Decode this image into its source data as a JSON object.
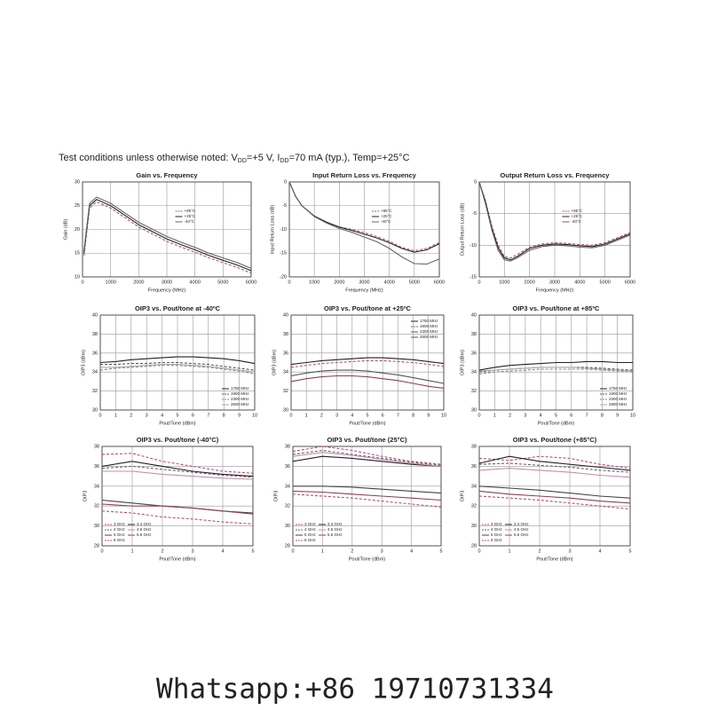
{
  "header": {
    "parts": [
      "Test conditions unless otherwise noted: V",
      "DD",
      "=+5 V, I",
      "DD",
      "=70 mA (typ.), Temp=+25°C"
    ]
  },
  "footer": "Whatsapp:+86 19710731334",
  "chart_data": [
    {
      "type": "line",
      "title": "Gain vs. Frequency",
      "x_label": "Frequency (MHz)",
      "y_label": "Gain (dB)",
      "x": [
        50,
        250,
        500,
        1000,
        1500,
        2000,
        2500,
        3000,
        3500,
        4000,
        4500,
        5000,
        5500,
        6000
      ],
      "xlim": [
        0,
        6000
      ],
      "xticks": [
        0,
        1000,
        2000,
        3000,
        4000,
        5000,
        6000
      ],
      "ylim": [
        10,
        30
      ],
      "yticks": [
        10,
        15,
        20,
        25,
        30
      ],
      "grid": true,
      "legend": "center",
      "series": [
        {
          "name": "+85°C",
          "color": "#b0507f",
          "dashed": true,
          "values": [
            14.5,
            24.5,
            25.8,
            24.5,
            22.5,
            20.5,
            19,
            17.5,
            16.3,
            15.2,
            14,
            13,
            12,
            10.8
          ]
        },
        {
          "name": "+25°C",
          "color": "#222222",
          "dashed": false,
          "values": [
            15,
            25,
            26.3,
            25,
            23,
            21,
            19.5,
            18,
            16.8,
            15.7,
            14.5,
            13.5,
            12.5,
            11.3
          ]
        },
        {
          "name": "-40°C",
          "color": "#666666",
          "dashed": false,
          "values": [
            15.5,
            25.5,
            26.8,
            25.5,
            23.5,
            21.5,
            20,
            18.5,
            17.3,
            16.2,
            15,
            14,
            13,
            11.8
          ]
        }
      ]
    },
    {
      "type": "line",
      "title": "Input Return Loss vs. Frequency",
      "x_label": "Frequency (MHz)",
      "y_label": "Input Return Loss (dB)",
      "x": [
        0,
        250,
        500,
        1000,
        1500,
        2000,
        2500,
        3000,
        3500,
        4000,
        4500,
        5000,
        5500,
        6000
      ],
      "xlim": [
        0,
        6000
      ],
      "xticks": [
        0,
        1000,
        2000,
        3000,
        4000,
        5000,
        6000
      ],
      "ylim": [
        -20,
        0
      ],
      "yticks": [
        0,
        -5,
        -10,
        -15,
        -20
      ],
      "grid": true,
      "legend": "center",
      "series": [
        {
          "name": "+85°C",
          "color": "#b0507f",
          "dashed": true,
          "values": [
            0,
            -3,
            -5,
            -7.2,
            -8.5,
            -9.5,
            -10,
            -10.7,
            -11.5,
            -12.5,
            -13.8,
            -14.5,
            -14,
            -12.8
          ]
        },
        {
          "name": "+25°C",
          "color": "#222222",
          "dashed": false,
          "values": [
            0,
            -3,
            -5,
            -7.2,
            -8.5,
            -9.5,
            -10.2,
            -11,
            -11.8,
            -12.8,
            -14,
            -14.8,
            -14.3,
            -13
          ]
        },
        {
          "name": "-40°C",
          "color": "#666666",
          "dashed": false,
          "values": [
            0,
            -3,
            -5,
            -7.3,
            -8.7,
            -9.8,
            -10.6,
            -11.6,
            -12.6,
            -14,
            -15.8,
            -17.2,
            -17.3,
            -16.2
          ]
        }
      ]
    },
    {
      "type": "line",
      "title": "Output Return Loss vs. Frequency",
      "x_label": "Frequency (MHz)",
      "y_label": "Output Return Loss (dB)",
      "x": [
        0,
        250,
        500,
        750,
        1000,
        1250,
        1500,
        2000,
        2500,
        3000,
        3500,
        4000,
        4500,
        5000,
        5500,
        6000
      ],
      "xlim": [
        0,
        6000
      ],
      "xticks": [
        0,
        1000,
        2000,
        3000,
        4000,
        5000,
        6000
      ],
      "ylim": [
        -15,
        0
      ],
      "yticks": [
        0,
        -5,
        -10,
        -15
      ],
      "grid": true,
      "legend": "center",
      "series": [
        {
          "name": "+85°C",
          "color": "#b0507f",
          "dashed": true,
          "values": [
            0,
            -3,
            -7,
            -10,
            -11.8,
            -12,
            -11.5,
            -10.3,
            -9.8,
            -9.6,
            -9.7,
            -9.9,
            -10,
            -9.6,
            -8.8,
            -8
          ]
        },
        {
          "name": "+25°C",
          "color": "#222222",
          "dashed": false,
          "values": [
            0,
            -3.2,
            -7.3,
            -10.4,
            -12,
            -12.3,
            -11.8,
            -10.5,
            -10,
            -9.8,
            -9.9,
            -10.1,
            -10.2,
            -9.8,
            -9,
            -8.2
          ]
        },
        {
          "name": "-40°C",
          "color": "#666666",
          "dashed": false,
          "values": [
            0,
            -3.5,
            -7.6,
            -10.8,
            -12.3,
            -12.5,
            -12,
            -10.8,
            -10.2,
            -10,
            -10.1,
            -10.3,
            -10.4,
            -10,
            -9.2,
            -8.4
          ]
        }
      ]
    },
    {
      "type": "line",
      "title": "OIP3 vs. Pout/tone at -40ºC",
      "x_label": "Pout/Tone (dBm)",
      "y_label": "OIP3 (dBm)",
      "x": [
        0,
        1,
        2,
        3,
        4,
        5,
        6,
        7,
        8,
        9,
        10
      ],
      "xlim": [
        0,
        10
      ],
      "xticks": [
        0,
        1,
        2,
        3,
        4,
        5,
        6,
        7,
        8,
        9,
        10
      ],
      "ylim": [
        30,
        40
      ],
      "yticks": [
        30,
        32,
        34,
        36,
        38,
        40
      ],
      "grid": true,
      "legend": "lower-right",
      "series": [
        {
          "name": "1750 MHz",
          "color": "#222222",
          "dashed": false,
          "values": [
            35,
            35.1,
            35.3,
            35.4,
            35.5,
            35.6,
            35.6,
            35.5,
            35.4,
            35.2,
            34.9
          ]
        },
        {
          "name": "1900 MHz",
          "color": "#555555",
          "dashed": true,
          "values": [
            34.8,
            34.8,
            34.9,
            34.9,
            35,
            35,
            34.9,
            34.8,
            34.6,
            34.4,
            34.2
          ]
        },
        {
          "name": "2300 MHz",
          "color": "#888888",
          "dashed": true,
          "values": [
            34.2,
            34.4,
            34.5,
            34.6,
            34.7,
            34.7,
            34.6,
            34.5,
            34.3,
            34.1,
            33.8
          ]
        },
        {
          "name": "2600 MHz",
          "color": "#aaaaaa",
          "dashed": false,
          "values": [
            34.5,
            34.5,
            34.6,
            34.7,
            34.8,
            34.8,
            34.7,
            34.6,
            34.4,
            34.2,
            34
          ]
        }
      ]
    },
    {
      "type": "line",
      "title": "OIP3 vs. Pout/tone at +25ºC",
      "x_label": "Pout/Tone (dBm)",
      "y_label": "OIP3 (dBm)",
      "x": [
        0,
        1,
        2,
        3,
        4,
        5,
        6,
        7,
        8,
        9,
        10
      ],
      "xlim": [
        0,
        10
      ],
      "xticks": [
        0,
        1,
        2,
        3,
        4,
        5,
        6,
        7,
        8,
        9,
        10
      ],
      "ylim": [
        30,
        40
      ],
      "yticks": [
        30,
        32,
        34,
        36,
        38,
        40
      ],
      "grid": true,
      "legend": "upper-right",
      "series": [
        {
          "name": "1750 MHz",
          "color": "#222222",
          "dashed": false,
          "values": [
            34.8,
            35,
            35.2,
            35.3,
            35.4,
            35.5,
            35.5,
            35.4,
            35.3,
            35.1,
            34.9
          ]
        },
        {
          "name": "1900 MHz",
          "color": "#b0507f",
          "dashed": true,
          "values": [
            34.5,
            34.7,
            34.9,
            35,
            35.1,
            35.2,
            35.2,
            35.1,
            35,
            34.8,
            34.6
          ]
        },
        {
          "name": "2300 MHz",
          "color": "#555555",
          "dashed": false,
          "values": [
            33.6,
            33.9,
            34.1,
            34.2,
            34.2,
            34.1,
            33.9,
            33.7,
            33.4,
            33.1,
            32.8
          ]
        },
        {
          "name": "2600 MHz",
          "color": "#8a4060",
          "dashed": false,
          "values": [
            33,
            33.3,
            33.5,
            33.6,
            33.6,
            33.5,
            33.3,
            33.1,
            32.8,
            32.5,
            32.3
          ]
        }
      ]
    },
    {
      "type": "line",
      "title": "OIP3 vs. Pout/tone at +85ºC",
      "x_label": "Pout/Tone (dBm)",
      "y_label": "OIP3 (dBm)",
      "x": [
        0,
        1,
        2,
        3,
        4,
        5,
        6,
        7,
        8,
        9,
        10
      ],
      "xlim": [
        0,
        10
      ],
      "xticks": [
        0,
        1,
        2,
        3,
        4,
        5,
        6,
        7,
        8,
        9,
        10
      ],
      "ylim": [
        30,
        40
      ],
      "yticks": [
        30,
        32,
        34,
        36,
        38,
        40
      ],
      "grid": true,
      "legend": "lower-right",
      "series": [
        {
          "name": "1750 MHz",
          "color": "#222222",
          "dashed": false,
          "values": [
            34.2,
            34.5,
            34.7,
            34.8,
            34.9,
            35,
            35,
            35.1,
            35.1,
            35,
            35
          ]
        },
        {
          "name": "1900 MHz",
          "color": "#555555",
          "dashed": true,
          "values": [
            34,
            34.2,
            34.3,
            34.4,
            34.5,
            34.5,
            34.5,
            34.5,
            34.4,
            34.3,
            34.2
          ]
        },
        {
          "name": "2300 MHz",
          "color": "#888888",
          "dashed": true,
          "values": [
            33.8,
            34,
            34.1,
            34.2,
            34.3,
            34.3,
            34.3,
            34.3,
            34.2,
            34.1,
            34
          ]
        },
        {
          "name": "2600 MHz",
          "color": "#aaaaaa",
          "dashed": false,
          "values": [
            34.1,
            34.2,
            34.3,
            34.4,
            34.5,
            34.5,
            34.5,
            34.4,
            34.3,
            34.2,
            34.1
          ]
        }
      ]
    },
    {
      "type": "line",
      "title": "OIP3 vs. Pout/tone (-40°C)",
      "x_label": "Pout/Tone (dBm)",
      "y_label": "OIP3",
      "x": [
        0,
        1,
        2,
        3,
        4,
        5
      ],
      "xlim": [
        0,
        5
      ],
      "xticks": [
        0,
        1,
        2,
        3,
        4,
        5
      ],
      "ylim": [
        28,
        38
      ],
      "yticks": [
        28,
        30,
        32,
        34,
        36,
        38
      ],
      "grid": true,
      "legend": "lower-left",
      "series": [
        {
          "name": "3 GHz",
          "color": "#b0507f",
          "dashed": true,
          "values": [
            37.2,
            37.3,
            36.5,
            36,
            35.5,
            35.3
          ]
        },
        {
          "name": "3.4 GHz",
          "color": "#222222",
          "dashed": false,
          "values": [
            36,
            36.5,
            36,
            35.5,
            35.2,
            35
          ]
        },
        {
          "name": "4 GHz",
          "color": "#666666",
          "dashed": true,
          "values": [
            35.8,
            36,
            35.7,
            35.4,
            35.1,
            34.9
          ]
        },
        {
          "name": "4.5 GHz",
          "color": "#c090b0",
          "dashed": false,
          "values": [
            35.5,
            35.5,
            35.2,
            35,
            34.8,
            34.7
          ]
        },
        {
          "name": "5 GHz",
          "color": "#444444",
          "dashed": false,
          "values": [
            32.6,
            32.3,
            32,
            31.8,
            31.5,
            31.3
          ]
        },
        {
          "name": "5.5 GHz",
          "color": "#8a4060",
          "dashed": false,
          "values": [
            32.2,
            32,
            32,
            31.8,
            31.5,
            31.2
          ]
        },
        {
          "name": "6 GHz",
          "color": "#b0507f",
          "dashed": true,
          "values": [
            31.5,
            31.3,
            30.9,
            30.7,
            30.4,
            30.2
          ]
        }
      ]
    },
    {
      "type": "line",
      "title": "OIP3 vs. Pout/tone (25°C)",
      "x_label": "Pout/Tone (dBm)",
      "y_label": "OIP3",
      "x": [
        0,
        1,
        2,
        3,
        4,
        5
      ],
      "xlim": [
        0,
        5
      ],
      "xticks": [
        0,
        1,
        2,
        3,
        4,
        5
      ],
      "ylim": [
        28,
        38
      ],
      "yticks": [
        28,
        30,
        32,
        34,
        36,
        38
      ],
      "grid": true,
      "legend": "lower-left",
      "series": [
        {
          "name": "3 GHz",
          "color": "#b0507f",
          "dashed": true,
          "values": [
            37.5,
            38,
            37.6,
            37,
            36.5,
            36.2
          ]
        },
        {
          "name": "3.4 GHz",
          "color": "#222222",
          "dashed": false,
          "values": [
            36.5,
            37,
            36.8,
            36.5,
            36.2,
            36
          ]
        },
        {
          "name": "4 GHz",
          "color": "#666666",
          "dashed": true,
          "values": [
            37.2,
            37.6,
            37.2,
            36.8,
            36.4,
            36.1
          ]
        },
        {
          "name": "4.5 GHz",
          "color": "#c090b0",
          "dashed": false,
          "values": [
            37,
            37.4,
            37.1,
            36.7,
            36.3,
            36
          ]
        },
        {
          "name": "5 GHz",
          "color": "#444444",
          "dashed": false,
          "values": [
            34,
            34,
            33.9,
            33.7,
            33.5,
            33.3
          ]
        },
        {
          "name": "5.5 GHz",
          "color": "#8a4060",
          "dashed": false,
          "values": [
            33.5,
            33.4,
            33.2,
            33,
            32.8,
            32.6
          ]
        },
        {
          "name": "6 GHz",
          "color": "#b0507f",
          "dashed": true,
          "values": [
            33.2,
            33,
            32.8,
            32.5,
            32.2,
            31.9
          ]
        }
      ]
    },
    {
      "type": "line",
      "title": "OIP3 vs. Pout/tone (+85°C)",
      "x_label": "Pout/Tone (dBm)",
      "y_label": "OIP3",
      "x": [
        0,
        1,
        2,
        3,
        4,
        5
      ],
      "xlim": [
        0,
        5
      ],
      "xticks": [
        0,
        1,
        2,
        3,
        4,
        5
      ],
      "ylim": [
        28,
        38
      ],
      "yticks": [
        28,
        30,
        32,
        34,
        36,
        38
      ],
      "grid": true,
      "legend": "lower-left",
      "series": [
        {
          "name": "3 GHz",
          "color": "#b0507f",
          "dashed": true,
          "values": [
            36.8,
            36.6,
            37,
            36.8,
            36.2,
            35.8
          ]
        },
        {
          "name": "3.4 GHz",
          "color": "#222222",
          "dashed": false,
          "values": [
            36.3,
            37,
            36.5,
            36.2,
            35.9,
            35.6
          ]
        },
        {
          "name": "4 GHz",
          "color": "#666666",
          "dashed": true,
          "values": [
            36.2,
            36.3,
            36.1,
            35.9,
            35.6,
            35.4
          ]
        },
        {
          "name": "4.5 GHz",
          "color": "#c090b0",
          "dashed": false,
          "values": [
            35.6,
            35.8,
            35.6,
            35.4,
            35.1,
            34.9
          ]
        },
        {
          "name": "5 GHz",
          "color": "#444444",
          "dashed": false,
          "values": [
            34,
            33.8,
            33.6,
            33.3,
            33,
            32.8
          ]
        },
        {
          "name": "5.5 GHz",
          "color": "#8a4060",
          "dashed": false,
          "values": [
            33.5,
            33.2,
            33,
            32.8,
            32.5,
            32.3
          ]
        },
        {
          "name": "6 GHz",
          "color": "#b0507f",
          "dashed": true,
          "values": [
            33,
            32.8,
            32.6,
            32.3,
            32,
            31.7
          ]
        }
      ]
    }
  ]
}
